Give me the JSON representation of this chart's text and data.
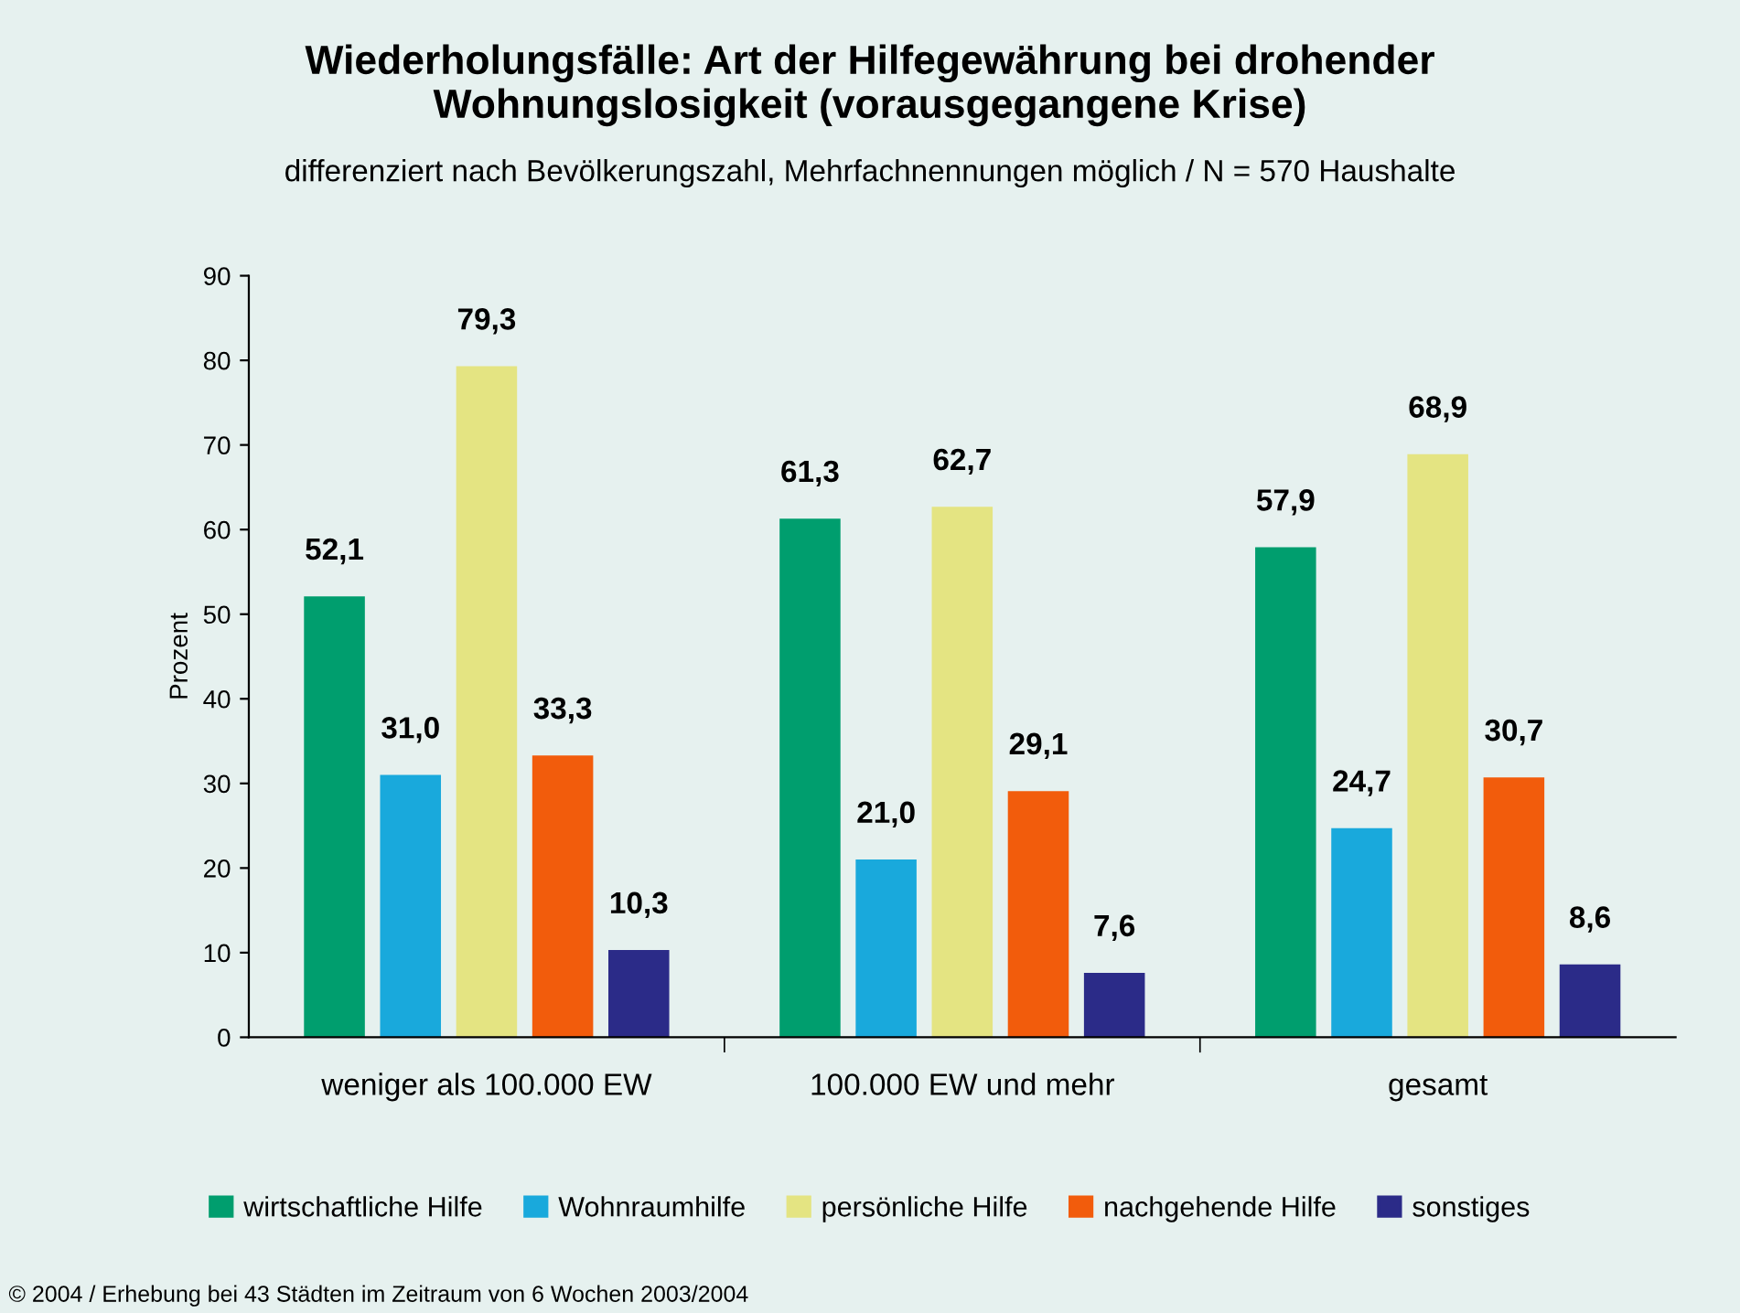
{
  "chart_data": {
    "type": "bar",
    "title": "Wiederholungsfälle: Art der Hilfegewährung bei drohender\nWohnungslosigkeit (vorausgegangene Krise)",
    "subtitle": "differenziert nach Bevölkerungszahl, Mehrfachnennungen möglich / N = 570 Haushalte",
    "ylabel": "Prozent",
    "categories": [
      "weniger als 100.000 EW",
      "100.000 EW und mehr",
      "gesamt"
    ],
    "series": [
      {
        "name": "wirtschaftliche Hilfe",
        "color": "#009e6e",
        "values": [
          52.1,
          61.3,
          57.9
        ],
        "value_labels": [
          "52,1",
          "61,3",
          "57,9"
        ]
      },
      {
        "name": "Wohnraumhilfe",
        "color": "#19a9dc",
        "values": [
          31.0,
          21.0,
          24.7
        ],
        "value_labels": [
          "31,0",
          "21,0",
          "24,7"
        ]
      },
      {
        "name": "persönliche Hilfe",
        "color": "#e4e482",
        "values": [
          79.3,
          62.7,
          68.9
        ],
        "value_labels": [
          "79,3",
          "62,7",
          "68,9"
        ]
      },
      {
        "name": "nachgehende Hilfe",
        "color": "#f25c0c",
        "values": [
          33.3,
          29.1,
          30.7
        ],
        "value_labels": [
          "33,3",
          "29,1",
          "30,7"
        ]
      },
      {
        "name": "sonstiges",
        "color": "#2b2b88",
        "values": [
          10.3,
          7.6,
          8.6
        ],
        "value_labels": [
          "10,3",
          "7,6",
          "8,6"
        ]
      }
    ],
    "ylim": [
      0,
      90
    ],
    "yticks": [
      0,
      10,
      20,
      30,
      40,
      50,
      60,
      70,
      80,
      90
    ],
    "grid": false,
    "legend": "bottom",
    "annotations": [
      "© 2004 / Erhebung bei 43 Städten im Zeitraum von 6 Wochen 2003/2004"
    ]
  }
}
